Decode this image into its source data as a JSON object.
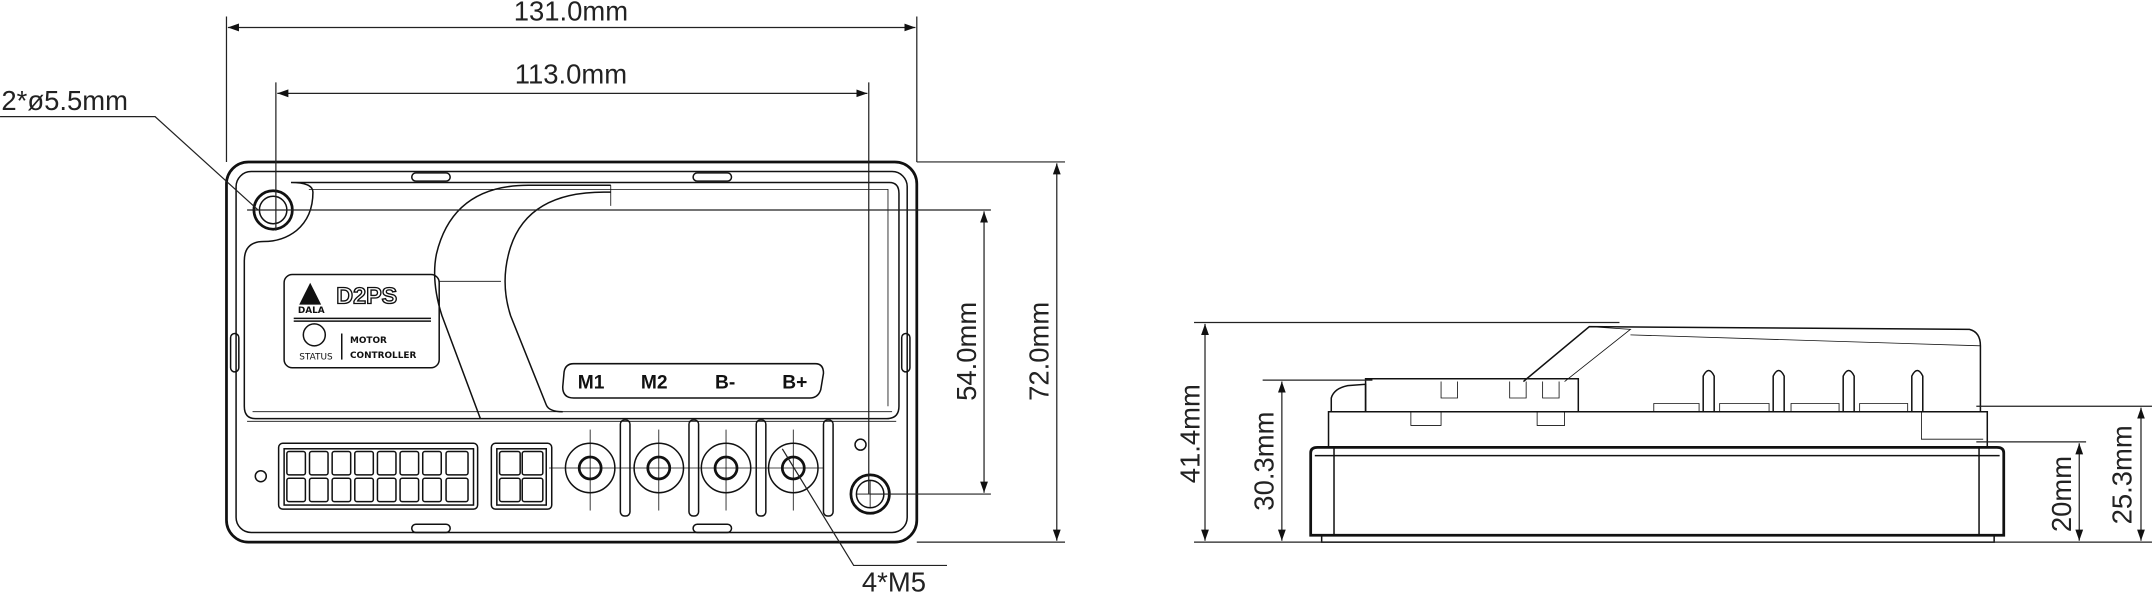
{
  "dimensions": {
    "overall_width": "131.0mm",
    "hole_spacing_width": "113.0mm",
    "mount_holes": "2*ø5.5mm",
    "hole_spacing_height": "54.0mm",
    "overall_height": "72.0mm",
    "terminal_thread": "4*M5",
    "total_thickness": "41.4mm",
    "connector_height": "30.3mm",
    "base_height": "20mm",
    "terminal_height": "25.3mm"
  },
  "label": {
    "brand": "DALA",
    "model": "D2PS",
    "status": "STATUS",
    "line1": "MOTOR",
    "line2": "CONTROLLER"
  },
  "terminals": [
    "M1",
    "M2",
    "B-",
    "B+"
  ]
}
